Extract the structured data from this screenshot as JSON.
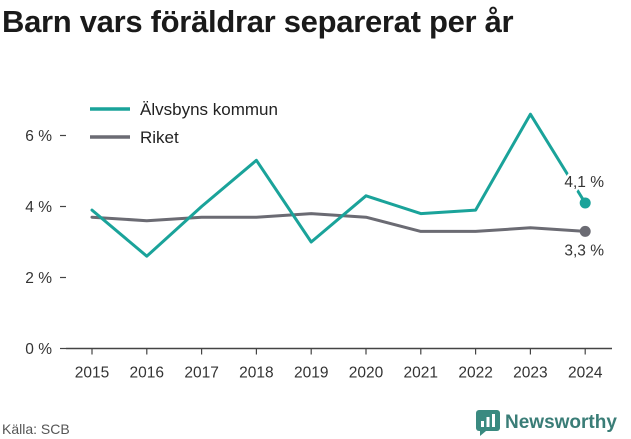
{
  "title": "Barn vars föräldrar separerat per år",
  "source": "Källa: SCB",
  "brand": {
    "name": "Newsworthy",
    "icon": "newsworthy-logo-icon",
    "color": "#3a8a80"
  },
  "chart_data": {
    "type": "line",
    "x": [
      2015,
      2016,
      2017,
      2018,
      2019,
      2020,
      2021,
      2022,
      2023,
      2024
    ],
    "x_tick_labels": [
      "2015",
      "2016",
      "2017",
      "2018",
      "2019",
      "2020",
      "2021",
      "2022",
      "2023",
      "2024"
    ],
    "y_ticks": [
      0,
      2,
      4,
      6
    ],
    "y_tick_labels": [
      "0 %",
      "2 %",
      "4 %",
      "6 %"
    ],
    "ylim": [
      0,
      7
    ],
    "grid": false,
    "legend_position": "top-left",
    "series": [
      {
        "name": "Älvsbyns kommun",
        "color": "#1aa39a",
        "values": [
          3.9,
          2.6,
          4.0,
          5.3,
          3.0,
          4.3,
          3.8,
          3.9,
          6.6,
          4.1
        ],
        "end_label": "4,1 %"
      },
      {
        "name": "Riket",
        "color": "#6b6b73",
        "values": [
          3.7,
          3.6,
          3.7,
          3.7,
          3.8,
          3.7,
          3.3,
          3.3,
          3.4,
          3.3
        ],
        "end_label": "3,3 %"
      }
    ]
  }
}
